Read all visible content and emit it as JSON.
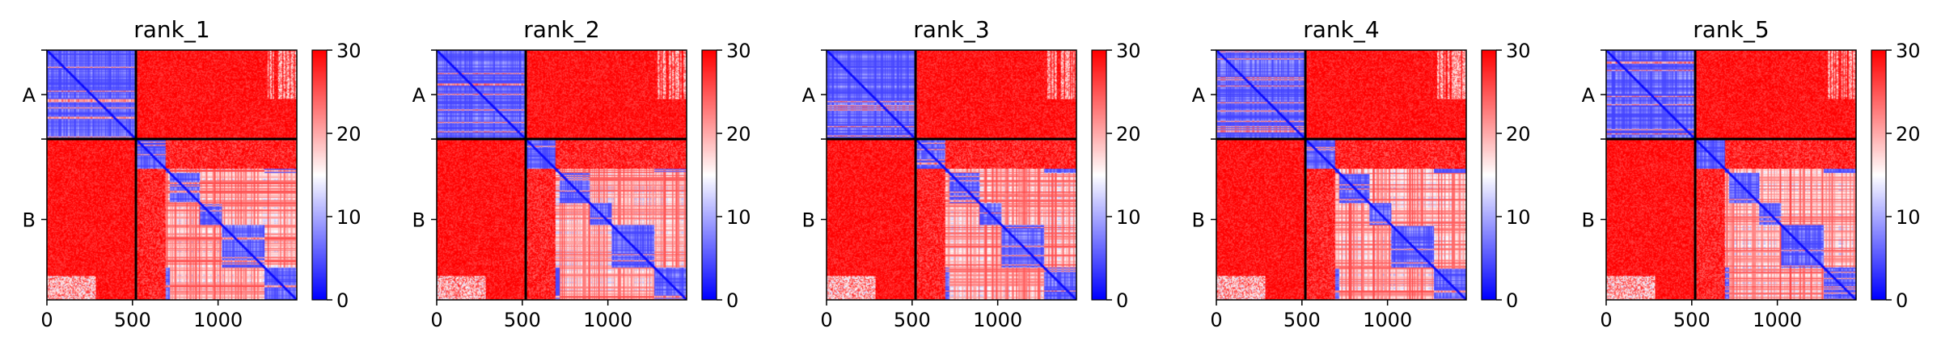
{
  "chart_data": {
    "type": "heatmap",
    "layout": "1x5 panels, each with its own vertical colorbar",
    "colormap": "bwr",
    "panels": [
      {
        "title": "rank_1",
        "seed": 11
      },
      {
        "title": "rank_2",
        "seed": 23
      },
      {
        "title": "rank_3",
        "seed": 37
      },
      {
        "title": "rank_4",
        "seed": 41
      },
      {
        "title": "rank_5",
        "seed": 59
      }
    ],
    "x_axis": {
      "range": [
        0,
        1460
      ],
      "ticks": [
        0,
        500,
        1000
      ],
      "tick_labels": [
        "0",
        "500",
        "1000"
      ]
    },
    "y_axis": {
      "inverted": true,
      "tick_labels": [
        "A",
        "B"
      ]
    },
    "chains": [
      {
        "name": "A",
        "start": 0,
        "end": 520
      },
      {
        "name": "B",
        "start": 520,
        "end": 1460
      }
    ],
    "colorbar": {
      "range": [
        0,
        30
      ],
      "ticks": [
        0,
        10,
        20,
        30
      ],
      "tick_labels": [
        "0",
        "10",
        "20",
        "30"
      ]
    }
  }
}
